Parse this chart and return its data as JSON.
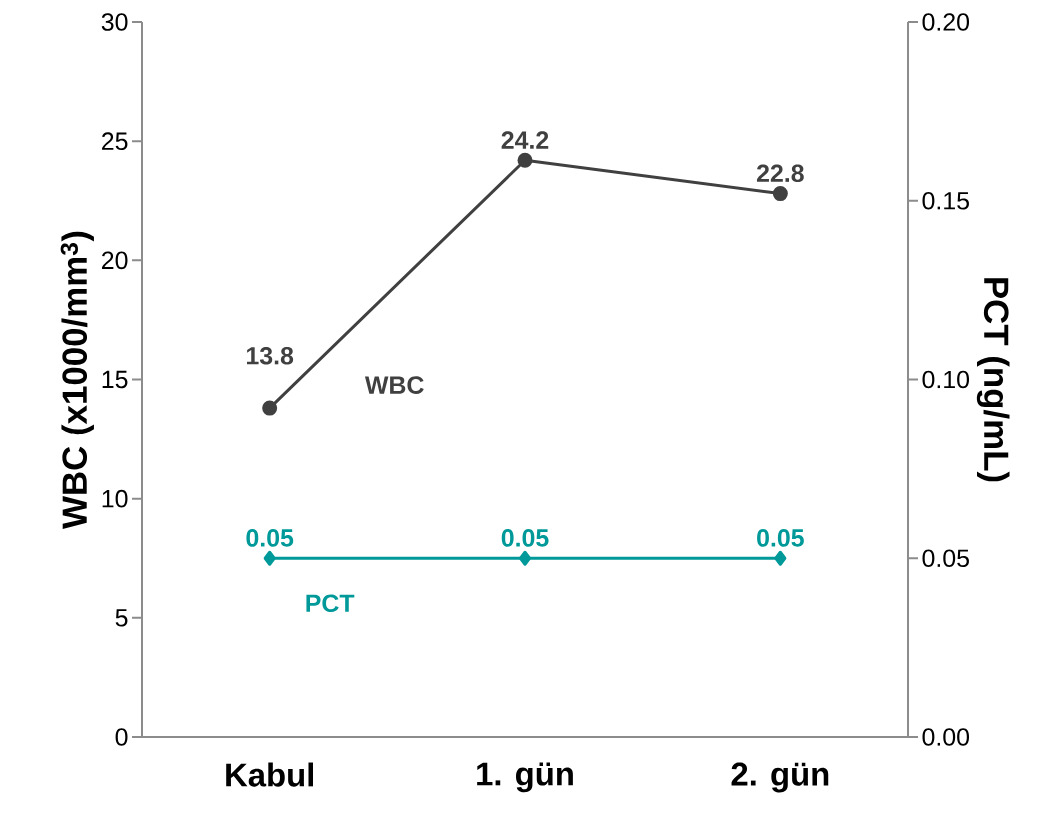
{
  "chart_data": {
    "type": "line",
    "categories": [
      "Kabul",
      "1. gün",
      "2. gün"
    ],
    "series": [
      {
        "name": "WBC",
        "color": "#404040",
        "marker": "circle",
        "values": [
          13.8,
          24.2,
          22.8
        ],
        "value_labels": [
          "13.8",
          "24.2",
          "22.8"
        ]
      },
      {
        "name": "PCT",
        "color": "#009999",
        "marker": "diamond",
        "axis": "y2",
        "values": [
          0.05,
          0.05,
          0.05
        ],
        "value_labels": [
          "0.05",
          "0.05",
          "0.05"
        ]
      }
    ],
    "ylabel": "WBC (x1000/mm$^{3}$)",
    "y2label": "PCT (ng/mL)",
    "ylim": [
      0,
      30
    ],
    "yticks": [
      0,
      5,
      10,
      15,
      20,
      25,
      30
    ],
    "y2lim": [
      0,
      0.2
    ],
    "y2ticks": [
      {
        "value": 0,
        "label": "0.00"
      },
      {
        "value": 0.05,
        "label": "0.05"
      },
      {
        "value": 0.1,
        "label": "0.10"
      },
      {
        "value": 0.15,
        "label": "0.15"
      },
      {
        "value": 0.2,
        "label": "0.20"
      }
    ],
    "grid": false
  }
}
